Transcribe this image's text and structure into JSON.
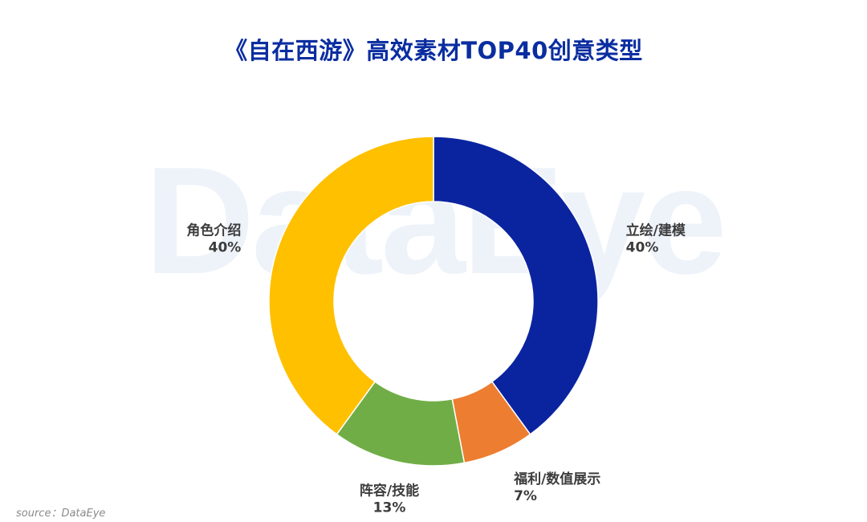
{
  "title": "《自在西游》高效素材TOP40创意类型",
  "watermark": "DataEye",
  "source": "source：DataEye",
  "chart_data": {
    "type": "pie",
    "donut": true,
    "title": "《自在西游》高效素材TOP40创意类型",
    "slices": [
      {
        "label": "立绘/建模",
        "value": 40,
        "value_label": "40%",
        "color": "#0a24a0"
      },
      {
        "label": "福利/数值展示",
        "value": 7,
        "value_label": "7%",
        "color": "#ed7d31"
      },
      {
        "label": "阵容/技能",
        "value": 13,
        "value_label": "13%",
        "color": "#70ad47"
      },
      {
        "label": "角色介绍",
        "value": 40,
        "value_label": "40%",
        "color": "#ffc000"
      }
    ],
    "start": "top",
    "direction": "clockwise",
    "legend": "none"
  }
}
